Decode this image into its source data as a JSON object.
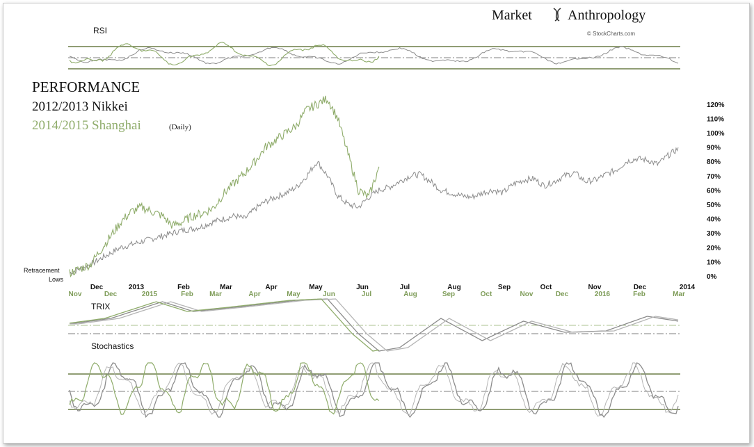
{
  "brand": {
    "title_left": "Market",
    "title_right": "Anthropology",
    "source": "© StockCharts.com"
  },
  "headline": {
    "line1": "PERFORMANCE",
    "line2": "2012/2013 Nikkei",
    "line3": "2014/2015 Shanghai",
    "line3_note": "(Daily)"
  },
  "retracement_label": [
    "Retracement",
    "Lows"
  ],
  "panels": {
    "rsi": "RSI",
    "trix": "TRIX",
    "stochastics": "Stochastics"
  },
  "colors": {
    "nikkei": "#8c8c8c",
    "shanghai": "#8fac6b",
    "band": "#6b7d46",
    "text_green": "#7e9c58"
  },
  "chart_data": {
    "type": "line",
    "title": "PERFORMANCE",
    "ylabel": "",
    "ylim": [
      0,
      125
    ],
    "yticks": [
      "0%",
      "10%",
      "20%",
      "30%",
      "40%",
      "50%",
      "60%",
      "70%",
      "80%",
      "90%",
      "100%",
      "110%",
      "120%"
    ],
    "x_top_labels": [
      "Dec",
      "2013",
      "Feb",
      "Mar",
      "Apr",
      "May",
      "Jun",
      "Jul",
      "Aug",
      "Sep",
      "Oct",
      "Nov",
      "Dec",
      "2014"
    ],
    "x_bottom_labels": [
      "Nov",
      "Dec",
      "2015",
      "Feb",
      "Mar",
      "Apr",
      "May",
      "Jun",
      "Jul",
      "Aug",
      "Sep",
      "Oct",
      "Nov",
      "Dec",
      "2016",
      "Feb",
      "Mar"
    ],
    "series": [
      {
        "name": "2012/2013 Nikkei",
        "x": [
          0,
          5,
          10,
          15,
          20,
          25,
          30,
          35,
          40,
          45,
          50,
          55,
          60,
          65,
          70,
          75,
          80,
          85,
          90,
          95,
          100,
          105,
          110,
          115,
          120,
          125,
          130,
          135,
          140,
          145,
          150,
          155,
          160,
          165,
          170,
          175,
          180,
          185,
          190,
          195,
          200,
          205,
          210,
          215,
          220,
          225,
          230,
          235,
          240,
          245,
          250,
          255,
          260,
          265,
          270,
          275,
          280,
          285,
          290,
          295
        ],
        "values": [
          2,
          5,
          8,
          12,
          16,
          20,
          22,
          24,
          26,
          28,
          30,
          32,
          33,
          35,
          38,
          40,
          42,
          40,
          47,
          52,
          55,
          58,
          62,
          70,
          80,
          70,
          56,
          50,
          48,
          55,
          60,
          62,
          66,
          70,
          71,
          66,
          60,
          58,
          56,
          55,
          58,
          60,
          58,
          64,
          67,
          68,
          63,
          66,
          70,
          72,
          66,
          67,
          71,
          74,
          80,
          82,
          81,
          78,
          84,
          89
        ]
      },
      {
        "name": "2014/2015 Shanghai",
        "x": [
          0,
          5,
          10,
          15,
          20,
          25,
          30,
          35,
          40,
          45,
          50,
          55,
          60,
          65,
          70,
          75,
          80,
          85,
          90,
          95,
          100,
          105,
          110,
          112,
          115,
          120,
          125,
          130,
          135,
          140,
          145,
          150
        ],
        "values": [
          2,
          5,
          8,
          18,
          28,
          38,
          45,
          48,
          45,
          42,
          35,
          38,
          42,
          44,
          48,
          58,
          65,
          72,
          80,
          90,
          95,
          100,
          105,
          110,
          116,
          120,
          124,
          110,
          85,
          60,
          55,
          76
        ]
      }
    ],
    "grid": false,
    "legend": "top-left"
  }
}
